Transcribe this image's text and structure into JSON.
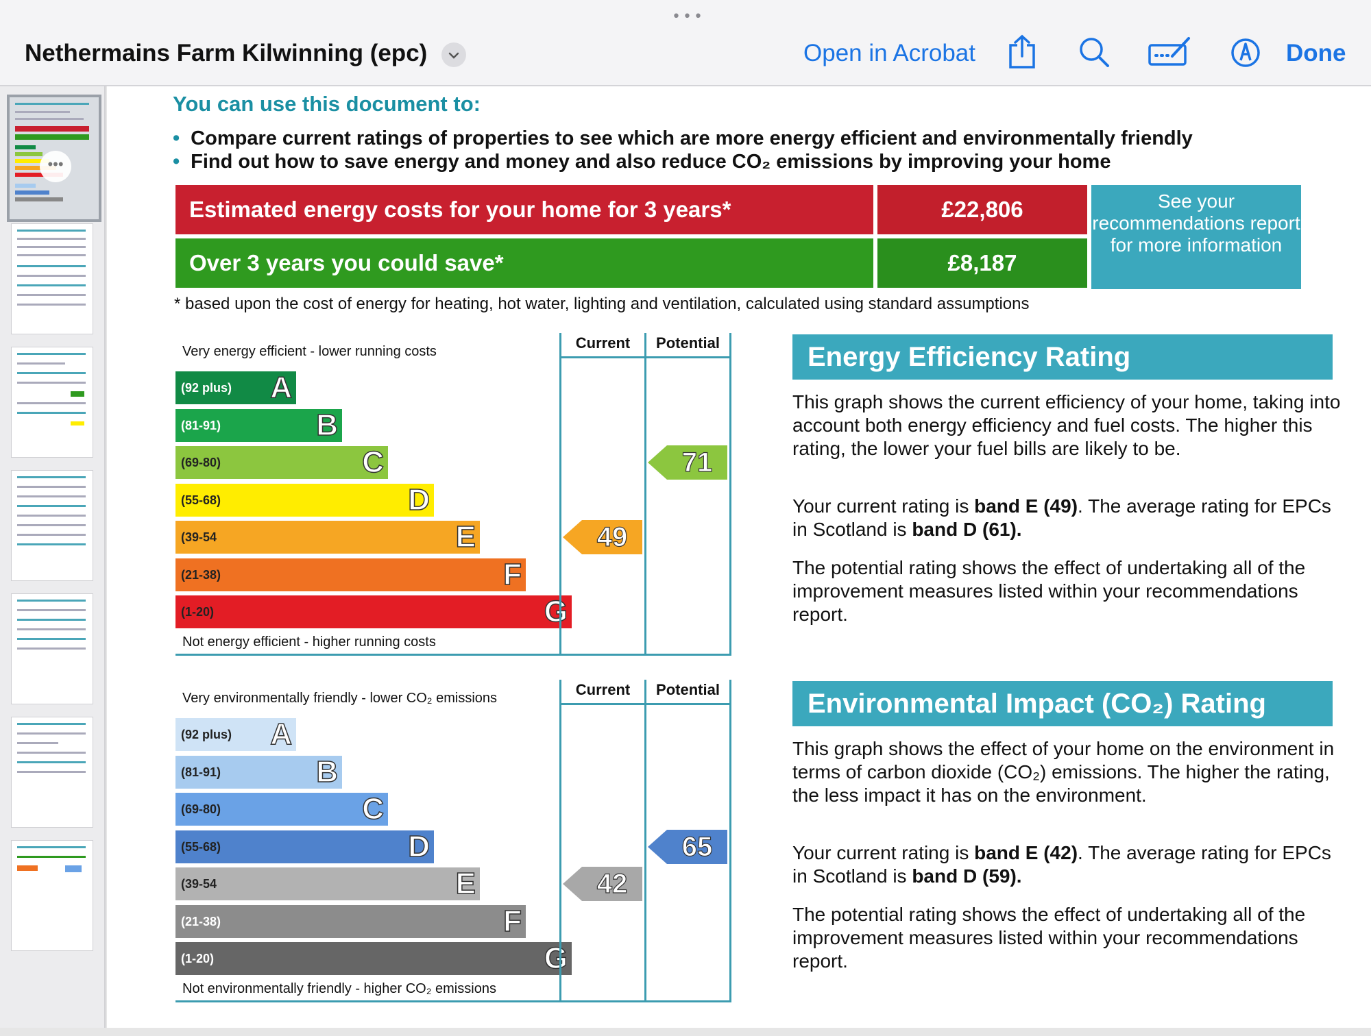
{
  "toolbar": {
    "grabber": "•••",
    "title": "Nethermains Farm Kilwinning (epc)",
    "open_in_acrobat": "Open in Acrobat",
    "done": "Done"
  },
  "usage": {
    "title": "You can use this document to:",
    "bullets": [
      "Compare current ratings of properties to see which are more energy efficient and environmentally friendly",
      "Find out how to save energy and money and also reduce CO₂ emissions by improving your home"
    ]
  },
  "costs": {
    "estimated_label": "Estimated energy costs for your home for 3 years*",
    "estimated_value": "£22,806",
    "save_label": "Over 3 years you could save*",
    "save_value": "£8,187",
    "see_box": "See your recommendations report for more information",
    "footnote": "* based upon the cost of energy for heating, hot water, lighting and ventilation, calculated using standard assumptions",
    "colors": {
      "red": "#c8202f",
      "red_dark": "#c21f2c",
      "green": "#2f9a1f",
      "green_dark": "#2a8f1d",
      "teal": "#3ba8bd"
    }
  },
  "efficiency": {
    "top_label": "Very energy efficient - lower running costs",
    "bottom_label": "Not energy efficient - higher running costs",
    "col_current": "Current",
    "col_potential": "Potential",
    "bands": [
      {
        "range": "(92 plus)",
        "letter": "A",
        "color": "#118a45",
        "range_color": "#ffffff"
      },
      {
        "range": "(81-91)",
        "letter": "B",
        "color": "#1ba54b",
        "range_color": "#ffffff"
      },
      {
        "range": "(69-80)",
        "letter": "C",
        "color": "#8cc63f",
        "range_color": "#222222"
      },
      {
        "range": "(55-68)",
        "letter": "D",
        "color": "#ffed00",
        "range_color": "#222222"
      },
      {
        "range": "(39-54",
        "letter": "E",
        "color": "#f6a623",
        "range_color": "#222222"
      },
      {
        "range": "(21-38)",
        "letter": "F",
        "color": "#ef7122",
        "range_color": "#222222"
      },
      {
        "range": "(1-20)",
        "letter": "G",
        "color": "#e31d25",
        "range_color": "#222222"
      }
    ],
    "current": {
      "value": "49",
      "band": "E",
      "color": "#f6a623"
    },
    "potential": {
      "value": "71",
      "band": "C",
      "color": "#8cc63f"
    },
    "heading": "Energy Efficiency Rating",
    "p1": "This graph shows the current efficiency of your home, taking into account both energy efficiency and fuel costs. The higher this rating, the lower your fuel bills are likely to be.",
    "p2_a": "Your current rating is ",
    "p2_b": "band E (49)",
    "p2_c": ". The average rating for EPCs in Scotland is ",
    "p2_d": "band D (61).",
    "p3": "The potential rating shows the effect of undertaking all of the improvement measures listed within your recommendations report."
  },
  "environment": {
    "top_label": "Very environmentally friendly - lower CO₂ emissions",
    "bottom_label": "Not environmentally friendly - higher CO₂ emissions",
    "col_current": "Current",
    "col_potential": "Potential",
    "bands": [
      {
        "range": "(92 plus)",
        "letter": "A",
        "color": "#cfe3f6",
        "range_color": "#222222"
      },
      {
        "range": "(81-91)",
        "letter": "B",
        "color": "#a7cbef",
        "range_color": "#222222"
      },
      {
        "range": "(69-80)",
        "letter": "C",
        "color": "#6aa2e6",
        "range_color": "#222222"
      },
      {
        "range": "(55-68)",
        "letter": "D",
        "color": "#4f82cc",
        "range_color": "#222222"
      },
      {
        "range": "(39-54",
        "letter": "E",
        "color": "#b2b2b2",
        "range_color": "#222222"
      },
      {
        "range": "(21-38)",
        "letter": "F",
        "color": "#8c8c8c",
        "range_color": "#ffffff"
      },
      {
        "range": "(1-20)",
        "letter": "G",
        "color": "#666666",
        "range_color": "#ffffff"
      }
    ],
    "current": {
      "value": "42",
      "band": "E",
      "color": "#a8a8a8"
    },
    "potential": {
      "value": "65",
      "band": "D",
      "color": "#4f82cc"
    },
    "heading": "Environmental Impact (CO₂) Rating",
    "p1": "This graph shows the effect of your home on the environment in terms of carbon dioxide (CO₂) emissions. The higher the rating, the less impact it has on the environment.",
    "p2_a": "Your current rating is ",
    "p2_b": "band E (42)",
    "p2_c": ". The average rating for EPCs in Scotland is ",
    "p2_d": "band D (59).",
    "p3": "The potential rating shows the effect of undertaking all of the improvement measures listed within your recommendations report."
  }
}
